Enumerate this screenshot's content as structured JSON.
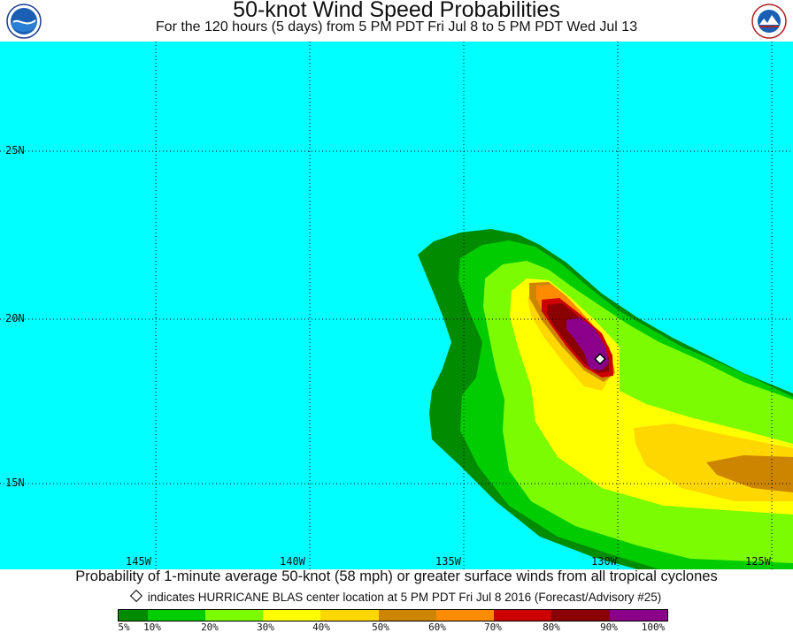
{
  "title": "50-knot Wind Speed Probabilities",
  "subtitle": "For the 120 hours (5 days) from 5 PM PDT Fri Jul 8 to 5 PM PDT Wed Jul 13",
  "logos": {
    "left": "noaa-logo",
    "right": "national-weather-service-logo"
  },
  "map": {
    "ocean_color": "#00ffff",
    "latitude_labels": [
      "25N",
      "20N",
      "15N"
    ],
    "longitude_labels": [
      "145W",
      "140W",
      "135W",
      "130W",
      "125W"
    ],
    "storm_center": {
      "name": "HURRICANE BLAS",
      "lat": 18.8,
      "lon": 129.6
    },
    "probability_field": "probability swath extending northwest from about 15N 125W to 22N 134W; peak 90-100% near the storm center"
  },
  "footer": {
    "line1": "Probability of 1-minute average 50-knot (58 mph) or greater surface winds from all tropical cyclones",
    "line2": "indicates HURRICANE BLAS center location at 5 PM PDT Fri Jul 8 2016 (Forecast/Advisory #25)"
  },
  "legend": {
    "colors": [
      "#008b00",
      "#00cc00",
      "#7cfc00",
      "#ffff00",
      "#ffd700",
      "#cd8500",
      "#ff8c00",
      "#cd0000",
      "#8b0000",
      "#8b008b"
    ],
    "labels": [
      "5%",
      "10%",
      "20%",
      "30%",
      "40%",
      "50%",
      "60%",
      "70%",
      "80%",
      "90%",
      "100%"
    ]
  }
}
